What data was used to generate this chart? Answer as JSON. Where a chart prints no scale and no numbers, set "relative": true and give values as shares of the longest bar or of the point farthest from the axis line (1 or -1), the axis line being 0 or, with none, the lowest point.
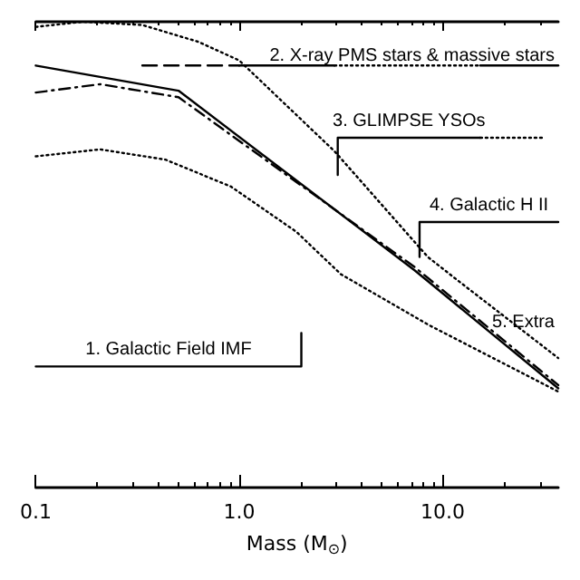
{
  "chart_data": {
    "type": "line",
    "relative": true,
    "xlabel": "Mass (M$_{⊙}$)",
    "log": "x",
    "xlim": [
      0.1,
      37
    ],
    "xticks": [
      {
        "value": 0.1,
        "label": "0.1"
      },
      {
        "value": 1,
        "label": "1.0"
      },
      {
        "value": 10,
        "label": "10.0"
      }
    ],
    "grid": false,
    "legend": false,
    "marker": "none",
    "series": [
      {
        "color": "#000000",
        "line_style": "solid",
        "x": [
          0.1,
          0.503,
          7.3,
          37
        ],
        "values": [
          0.906,
          0.852,
          0.466,
          0.213
        ]
      },
      {
        "color": "#000000",
        "line_style": "dashdot",
        "x": [
          0.1,
          0.207,
          0.503,
          7.3,
          37
        ],
        "values": [
          0.848,
          0.866,
          0.838,
          0.473,
          0.22
        ]
      },
      {
        "color": "#000000",
        "line_style": "dotted",
        "x": [
          0.1,
          0.171,
          0.334,
          0.629,
          1.0,
          2.94,
          8.46,
          11.6,
          37
        ],
        "values": [
          0.989,
          1,
          0.993,
          0.957,
          0.917,
          0.722,
          0.495,
          0.448,
          0.278
        ]
      },
      {
        "color": "#000000",
        "line_style": "dotted",
        "x": [
          0.1,
          0.207,
          0.434,
          0.912,
          1.91,
          3.16,
          8.46,
          37
        ],
        "values": [
          0.711,
          0.726,
          0.704,
          0.646,
          0.549,
          0.458,
          0.35,
          0.206
        ]
      },
      {
        "color": "#000000",
        "line_style": "dashed",
        "x": [
          0.334,
          1.0
        ],
        "values": [
          0.906,
          0.906
        ]
      },
      {
        "color": "#000000",
        "line_style": "solid",
        "x": [
          1.0,
          2.94
        ],
        "values": [
          0.906,
          0.906
        ]
      },
      {
        "color": "#000000",
        "line_style": "dotted",
        "x": [
          2.94,
          15.3
        ],
        "values": [
          0.906,
          0.906
        ]
      },
      {
        "color": "#000000",
        "line_style": "solid",
        "x": [
          15.3,
          37
        ],
        "values": [
          0.906,
          0.906
        ]
      },
      {
        "name": "3. GLIMPSE YSOs",
        "color": "#000000",
        "line_style": "solid",
        "x": [
          3.05,
          3.05,
          15.3
        ],
        "values": [
          0.671,
          0.751,
          0.751
        ]
      },
      {
        "color": "#000000",
        "line_style": "dotted",
        "x": [
          15.3,
          31
        ],
        "values": [
          0.751,
          0.751
        ]
      },
      {
        "name": "4. Galactic H II",
        "color": "#000000",
        "line_style": "solid",
        "x": [
          7.7,
          7.7,
          37
        ],
        "values": [
          0.495,
          0.57,
          0.57
        ]
      },
      {
        "name": "1. Galactic Field IMF",
        "color": "#000000",
        "line_style": "solid",
        "x": [
          0.1,
          2.02,
          2.02
        ],
        "values": [
          0.26,
          0.26,
          0.332
        ]
      }
    ],
    "annotations": [
      "2. X-ray PMS stars & massive stars",
      "5. Extra"
    ]
  }
}
